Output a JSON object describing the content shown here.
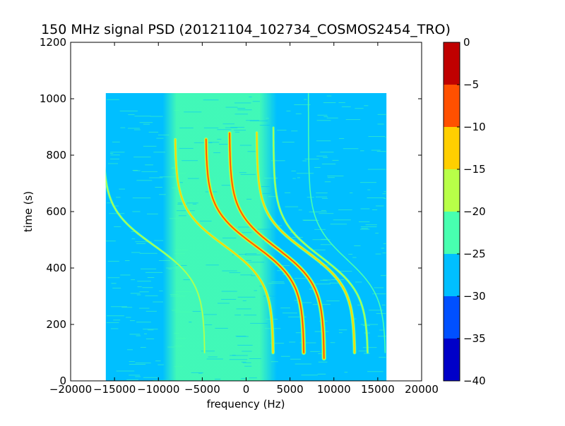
{
  "chart_data": {
    "type": "heatmap",
    "title": "150 MHz signal PSD (20121104_102734_COSMOS2454_TRO)",
    "xlabel": "frequency (Hz)",
    "ylabel": "time (s)",
    "xlim": [
      -20000,
      20000
    ],
    "ylim": [
      0,
      1200
    ],
    "xticks": [
      -20000,
      -15000,
      -10000,
      -5000,
      0,
      5000,
      10000,
      15000,
      20000
    ],
    "xtick_labels": [
      "−20000",
      "−15000",
      "−10000",
      "−5000",
      "0",
      "5000",
      "10000",
      "15000",
      "20000"
    ],
    "yticks": [
      0,
      200,
      400,
      600,
      800,
      1000,
      1200
    ],
    "ytick_labels": [
      "0",
      "200",
      "400",
      "600",
      "800",
      "1000",
      "1200"
    ],
    "data_extent": {
      "x": [
        -16000,
        16000
      ],
      "y": [
        0,
        1020
      ]
    },
    "background_level": -28,
    "noise_band": {
      "x": [
        -8000,
        2000
      ],
      "level": -23
    },
    "doppler_traces": [
      {
        "f_center": -10500,
        "t_center": 480,
        "swing": 5800,
        "t_range": [
          100,
          1020
        ],
        "peak_level": -17
      },
      {
        "f_center": -2500,
        "t_center": 480,
        "swing": 5600,
        "t_range": [
          100,
          860
        ],
        "peak_level": -10
      },
      {
        "f_center": 1000,
        "t_center": 480,
        "swing": 5600,
        "t_range": [
          100,
          860
        ],
        "peak_level": -3
      },
      {
        "f_center": 3500,
        "t_center": 470,
        "swing": 5400,
        "t_range": [
          80,
          880
        ],
        "peak_level": -4
      },
      {
        "f_center": 6800,
        "t_center": 460,
        "swing": 5600,
        "t_range": [
          100,
          880
        ],
        "peak_level": -8
      },
      {
        "f_center": 8500,
        "t_center": 440,
        "swing": 5400,
        "t_range": [
          100,
          900
        ],
        "peak_level": -15
      },
      {
        "f_center": 11500,
        "t_center": 430,
        "swing": 4400,
        "t_range": [
          100,
          1020
        ],
        "peak_level": -18
      }
    ],
    "colorbar": {
      "levels": [
        0,
        -5,
        -10,
        -15,
        -20,
        -25,
        -30,
        -35,
        -40
      ],
      "tick_labels": [
        "0",
        "−5",
        "−10",
        "−15",
        "−20",
        "−25",
        "−30",
        "−35",
        "−40"
      ],
      "colors": [
        "#c00000",
        "#ff5000",
        "#ffcf00",
        "#b8ff48",
        "#48ffb0",
        "#00bfff",
        "#0050ff",
        "#0000c8"
      ]
    }
  }
}
